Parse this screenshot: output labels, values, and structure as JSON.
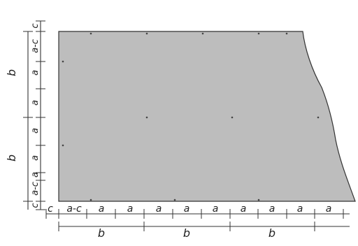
{
  "figure": {
    "plate_color": "#bdbdbd",
    "outline_color": "#333333",
    "bottom_labels": [
      "c",
      "a-c",
      "a",
      "a",
      "a",
      "a",
      "a",
      "a",
      "a",
      "a",
      "a"
    ],
    "bottom_b_labels": [
      "b",
      "b",
      "b"
    ],
    "left_labels": [
      "c",
      "a-c",
      "a",
      "a",
      "a",
      "a",
      "a",
      "a-c",
      "c"
    ],
    "left_b_labels": [
      "b",
      "b"
    ]
  }
}
